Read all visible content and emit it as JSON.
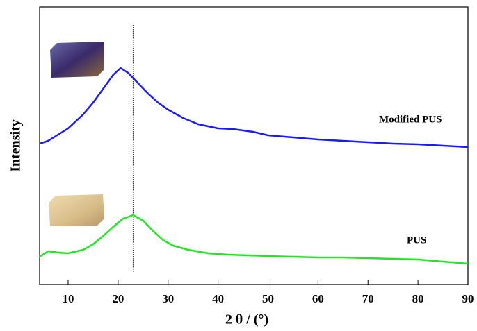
{
  "chart_data": {
    "type": "line",
    "x_label": "2 θ / (°)",
    "y_label": "Intensity",
    "xlim": [
      4.3,
      90
    ],
    "xticks": [
      10,
      20,
      30,
      40,
      50,
      60,
      70,
      80,
      90
    ],
    "ylim": [
      0,
      100
    ],
    "reference_x": 23,
    "series": [
      {
        "name": "Modified PUS",
        "color": "#1a1aff",
        "x": [
          4.3,
          6,
          8,
          10,
          13,
          15,
          17,
          19,
          20.5,
          22,
          24,
          26,
          28,
          30,
          33,
          36,
          40,
          43,
          47,
          50,
          55,
          60,
          65,
          70,
          75,
          80,
          85,
          90
        ],
        "values": [
          50.75,
          51.75,
          54,
          56.25,
          61.25,
          65.5,
          70.5,
          75.5,
          78,
          76.25,
          72.5,
          68.75,
          65.5,
          63,
          60,
          57.75,
          56.25,
          56,
          55,
          53.75,
          53,
          52.25,
          51.75,
          51.25,
          50.75,
          50.5,
          50,
          49.5
        ]
      },
      {
        "name": "PUS",
        "color": "#22e622",
        "x": [
          4.3,
          6,
          8,
          10,
          13,
          15,
          17,
          19,
          21,
          23,
          25,
          27,
          29,
          31,
          34,
          38,
          42,
          50,
          60,
          65,
          70,
          80,
          85,
          90
        ],
        "values": [
          10,
          12,
          11.5,
          11.25,
          12.5,
          14.5,
          17.5,
          20.75,
          23.75,
          25,
          23,
          19.25,
          16,
          14,
          12.5,
          11.25,
          10.75,
          10.25,
          9.75,
          9.75,
          9.5,
          9,
          8.25,
          7.5
        ]
      }
    ]
  }
}
